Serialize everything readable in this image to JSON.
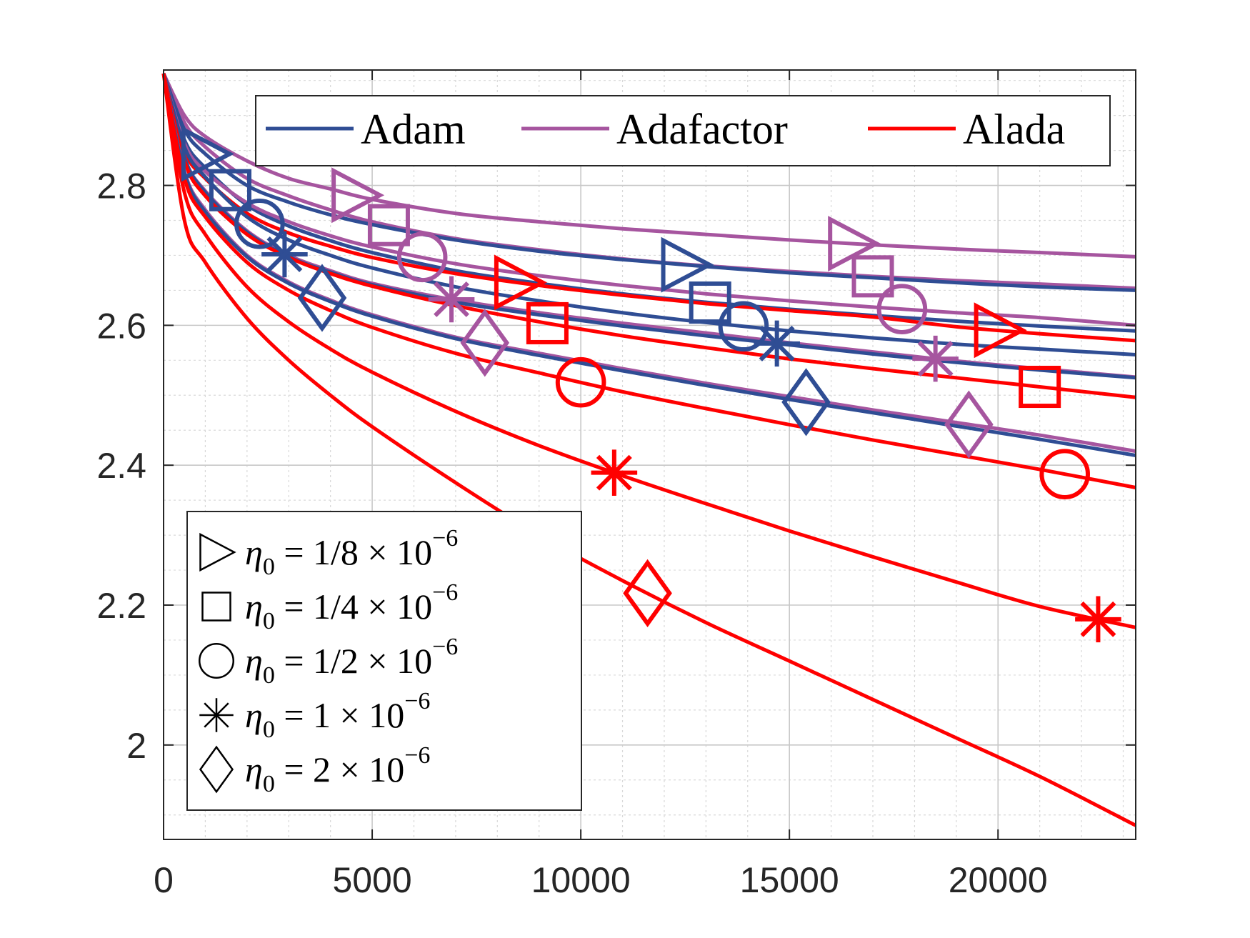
{
  "chart_data": {
    "type": "line",
    "title": "",
    "xlabel": "",
    "ylabel": "",
    "xlim": [
      0,
      23300
    ],
    "ylim": [
      1.865,
      2.965
    ],
    "x_ticks": [
      0,
      5000,
      10000,
      15000,
      20000
    ],
    "x_tick_labels": [
      "0",
      "5000",
      "10000",
      "15000",
      "20000"
    ],
    "y_ticks": [
      2.0,
      2.2,
      2.4,
      2.6,
      2.8
    ],
    "y_tick_labels": [
      "2",
      "2.2",
      "2.4",
      "2.6",
      "2.8"
    ],
    "grid": true,
    "minor_grid": true,
    "colors": {
      "Adam": "#2f4d94",
      "Adafactor": "#a6559f",
      "Alada": "#ff0000"
    },
    "legend_methods": {
      "position": "top-right",
      "entries": [
        {
          "label": "Adam",
          "color": "#2f4d94"
        },
        {
          "label": "Adafactor",
          "color": "#a6559f"
        },
        {
          "label": "Alada",
          "color": "#ff0000"
        }
      ]
    },
    "legend_markers": {
      "position": "bottom-left",
      "entries": [
        {
          "marker": "triangle-right",
          "label": "η₀ = 1/8 × 10⁻⁶",
          "frac": "1/8",
          "exp": "−6"
        },
        {
          "marker": "square",
          "label": "η₀ = 1/4 × 10⁻⁶",
          "frac": "1/4",
          "exp": "−6"
        },
        {
          "marker": "circle",
          "label": "η₀ = 1/2 × 10⁻⁶",
          "frac": "1/2",
          "exp": "−6"
        },
        {
          "marker": "asterisk",
          "label": "η₀ = 1 × 10⁻⁶",
          "frac": "1",
          "exp": "−6"
        },
        {
          "marker": "diamond",
          "label": "η₀ = 2 × 10⁻⁶",
          "frac": "2",
          "exp": "−6"
        }
      ]
    },
    "series": [
      {
        "method": "Adafactor",
        "lr": "1/8",
        "marker": "triangle-right",
        "x": [
          0,
          500,
          1000,
          2000,
          3000,
          4000,
          5000,
          7000,
          9000,
          11000,
          13000,
          15000,
          17000,
          19000,
          21000,
          23300
        ],
        "y": [
          2.96,
          2.9,
          2.87,
          2.835,
          2.81,
          2.795,
          2.78,
          2.76,
          2.748,
          2.738,
          2.73,
          2.722,
          2.715,
          2.709,
          2.704,
          2.698
        ],
        "markers_x": [
          4600,
          16500
        ]
      },
      {
        "method": "Adafactor",
        "lr": "1/4",
        "marker": "square",
        "x": [
          0,
          500,
          1000,
          2000,
          3000,
          4000,
          5000,
          7000,
          9000,
          11000,
          13000,
          15000,
          17000,
          19000,
          21000,
          23300
        ],
        "y": [
          2.96,
          2.89,
          2.855,
          2.81,
          2.785,
          2.765,
          2.748,
          2.724,
          2.708,
          2.695,
          2.685,
          2.677,
          2.67,
          2.664,
          2.659,
          2.653
        ],
        "markers_x": [
          5400,
          17000
        ]
      },
      {
        "method": "Adam",
        "lr": "1/8",
        "marker": "triangle-right",
        "x": [
          0,
          500,
          1000,
          2000,
          3000,
          4000,
          5000,
          7000,
          9000,
          11000,
          13000,
          15000,
          17000,
          19000,
          21000,
          23300
        ],
        "y": [
          2.96,
          2.88,
          2.845,
          2.8,
          2.776,
          2.758,
          2.744,
          2.722,
          2.706,
          2.694,
          2.684,
          2.675,
          2.668,
          2.661,
          2.655,
          2.65
        ],
        "markers_x": [
          1000,
          12500
        ]
      },
      {
        "method": "Adam",
        "lr": "1/4",
        "marker": "square",
        "x": [
          0,
          500,
          1000,
          2000,
          3000,
          4000,
          5000,
          7000,
          9000,
          11000,
          13000,
          15000,
          17000,
          19000,
          21000,
          23300
        ],
        "y": [
          2.96,
          2.865,
          2.825,
          2.772,
          2.742,
          2.721,
          2.704,
          2.678,
          2.66,
          2.645,
          2.633,
          2.623,
          2.614,
          2.606,
          2.599,
          2.592
        ],
        "markers_x": [
          1600,
          13100
        ]
      },
      {
        "method": "Adafactor",
        "lr": "1/2",
        "marker": "circle",
        "x": [
          0,
          500,
          1000,
          2000,
          3000,
          4000,
          5000,
          7000,
          9000,
          11000,
          13000,
          15000,
          17000,
          19000,
          21000,
          23300
        ],
        "y": [
          2.96,
          2.86,
          2.82,
          2.775,
          2.748,
          2.728,
          2.712,
          2.688,
          2.671,
          2.657,
          2.645,
          2.635,
          2.626,
          2.618,
          2.611,
          2.6
        ],
        "markers_x": [
          6200,
          17700
        ]
      },
      {
        "method": "Alada",
        "lr": "1/8",
        "marker": "triangle-right",
        "x": [
          0,
          500,
          1000,
          2000,
          3000,
          4000,
          5000,
          7000,
          9000,
          11000,
          13000,
          15000,
          17000,
          19000,
          21000,
          23300
        ],
        "y": [
          2.96,
          2.85,
          2.81,
          2.76,
          2.732,
          2.713,
          2.697,
          2.674,
          2.657,
          2.643,
          2.631,
          2.621,
          2.612,
          2.598,
          2.588,
          2.578
        ],
        "markers_x": [
          8500,
          20000
        ]
      },
      {
        "method": "Adam",
        "lr": "1/2",
        "marker": "circle",
        "x": [
          0,
          500,
          1000,
          2000,
          3000,
          4000,
          5000,
          7000,
          9000,
          11000,
          13000,
          15000,
          17000,
          19000,
          21000,
          23300
        ],
        "y": [
          2.96,
          2.855,
          2.812,
          2.755,
          2.722,
          2.7,
          2.682,
          2.655,
          2.635,
          2.618,
          2.604,
          2.592,
          2.582,
          2.573,
          2.566,
          2.558
        ],
        "markers_x": [
          2300,
          13900
        ]
      },
      {
        "method": "Adafactor",
        "lr": "1",
        "marker": "asterisk",
        "x": [
          0,
          500,
          1000,
          2000,
          3000,
          4000,
          5000,
          7000,
          9000,
          11000,
          13000,
          15000,
          17000,
          19000,
          21000,
          23300
        ],
        "y": [
          2.96,
          2.84,
          2.792,
          2.735,
          2.7,
          2.678,
          2.66,
          2.636,
          2.618,
          2.603,
          2.589,
          2.575,
          2.562,
          2.549,
          2.538,
          2.526
        ],
        "markers_x": [
          6900,
          18500
        ]
      },
      {
        "method": "Adam",
        "lr": "1",
        "marker": "asterisk",
        "x": [
          0,
          500,
          1000,
          2000,
          3000,
          4000,
          5000,
          7000,
          9000,
          11000,
          13000,
          15000,
          17000,
          19000,
          21000,
          23300
        ],
        "y": [
          2.96,
          2.84,
          2.79,
          2.733,
          2.698,
          2.676,
          2.658,
          2.633,
          2.615,
          2.599,
          2.585,
          2.572,
          2.559,
          2.547,
          2.536,
          2.525
        ],
        "markers_x": [
          2900,
          14700
        ]
      },
      {
        "method": "Alada",
        "lr": "1/4",
        "marker": "square",
        "x": [
          0,
          500,
          1000,
          2000,
          3000,
          4000,
          5000,
          7000,
          9000,
          11000,
          13000,
          15000,
          17000,
          19000,
          21000,
          23300
        ],
        "y": [
          2.96,
          2.835,
          2.785,
          2.73,
          2.697,
          2.674,
          2.656,
          2.628,
          2.605,
          2.585,
          2.568,
          2.552,
          2.538,
          2.525,
          2.512,
          2.497
        ],
        "markers_x": [
          9200,
          21000
        ]
      },
      {
        "method": "Adafactor",
        "lr": "2",
        "marker": "diamond",
        "x": [
          0,
          500,
          1000,
          2000,
          3000,
          4000,
          5000,
          7000,
          9000,
          11000,
          13000,
          15000,
          17000,
          19000,
          21000,
          23300
        ],
        "y": [
          2.96,
          2.82,
          2.765,
          2.7,
          2.662,
          2.636,
          2.615,
          2.583,
          2.56,
          2.538,
          2.517,
          2.498,
          2.479,
          2.461,
          2.443,
          2.42
        ],
        "markers_x": [
          7700,
          19300
        ]
      },
      {
        "method": "Adam",
        "lr": "2",
        "marker": "diamond",
        "x": [
          0,
          500,
          1000,
          2000,
          3000,
          4000,
          5000,
          7000,
          9000,
          11000,
          13000,
          15000,
          17000,
          19000,
          21000,
          23300
        ],
        "y": [
          2.96,
          2.818,
          2.762,
          2.698,
          2.66,
          2.634,
          2.613,
          2.581,
          2.557,
          2.535,
          2.514,
          2.494,
          2.475,
          2.456,
          2.437,
          2.414
        ],
        "markers_x": [
          3800,
          15400
        ]
      },
      {
        "method": "Alada",
        "lr": "1/2",
        "marker": "circle",
        "x": [
          0,
          500,
          1000,
          2000,
          3000,
          4000,
          5000,
          7000,
          9000,
          11000,
          13000,
          15000,
          17000,
          19000,
          21000,
          23300
        ],
        "y": [
          2.96,
          2.81,
          2.755,
          2.69,
          2.65,
          2.621,
          2.597,
          2.56,
          2.532,
          2.505,
          2.481,
          2.458,
          2.436,
          2.415,
          2.394,
          2.368
        ],
        "markers_x": [
          10000,
          21600
        ]
      },
      {
        "method": "Alada",
        "lr": "1",
        "marker": "asterisk",
        "x": [
          0,
          500,
          1000,
          2000,
          3000,
          4000,
          5000,
          7000,
          9000,
          11000,
          13000,
          15000,
          17000,
          19000,
          21000,
          23300
        ],
        "y": [
          2.96,
          2.79,
          2.73,
          2.655,
          2.605,
          2.566,
          2.533,
          2.477,
          2.428,
          2.385,
          2.345,
          2.306,
          2.269,
          2.233,
          2.198,
          2.168
        ],
        "markers_x": [
          10800,
          22400
        ]
      },
      {
        "method": "Alada",
        "lr": "2",
        "marker": "diamond",
        "x": [
          0,
          500,
          1000,
          2000,
          3000,
          4000,
          5000,
          7000,
          9000,
          11000,
          13000,
          15000,
          17000,
          19000,
          21000,
          23300
        ],
        "y": [
          2.96,
          2.75,
          2.69,
          2.61,
          2.55,
          2.5,
          2.455,
          2.375,
          2.3,
          2.235,
          2.175,
          2.12,
          2.065,
          2.01,
          1.955,
          1.885
        ],
        "markers_x": [
          11600
        ]
      }
    ]
  }
}
